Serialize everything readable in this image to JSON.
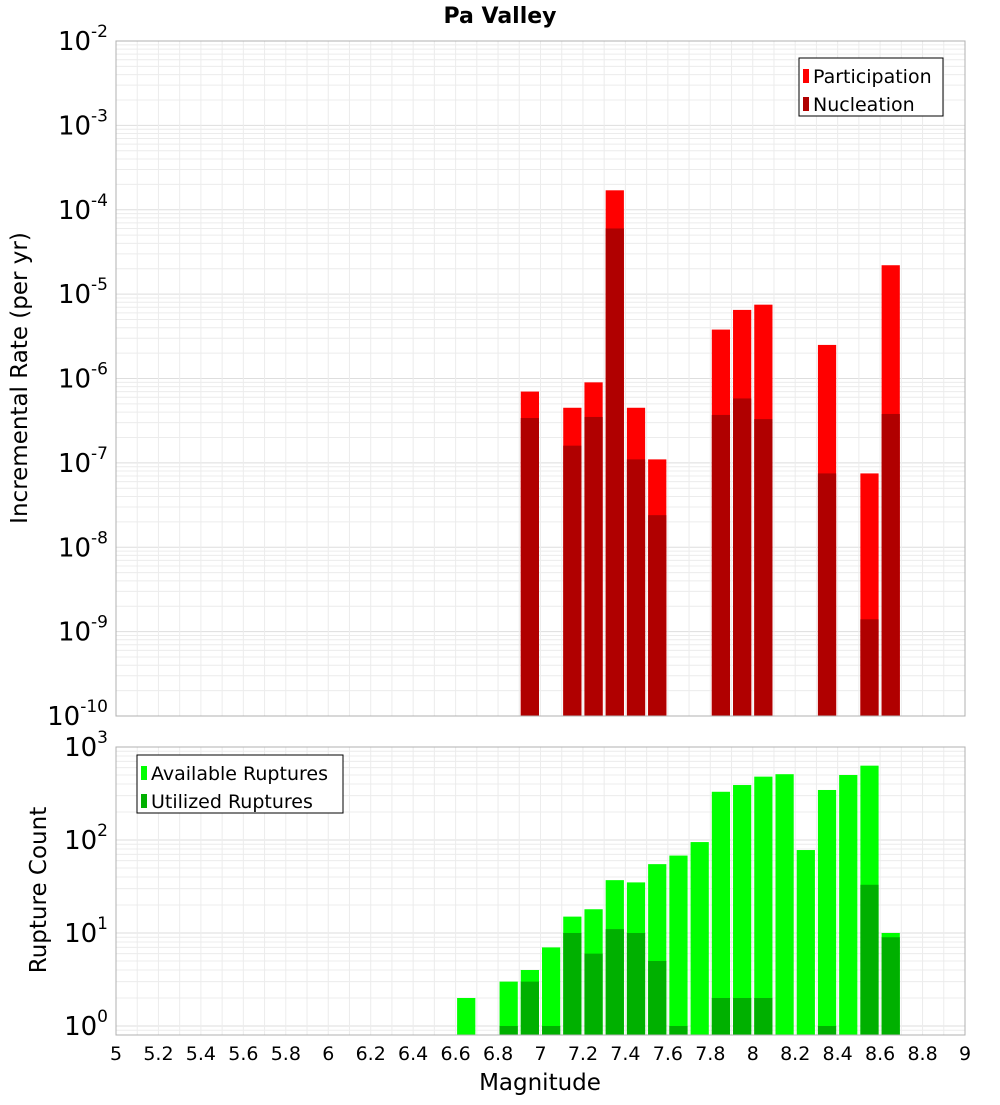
{
  "chart_data": [
    {
      "type": "bar",
      "title": "Pa Valley",
      "ylabel": "Incremental Rate (per yr)",
      "yscale": "log",
      "ylim": [
        1e-10,
        0.01
      ],
      "yticks": [
        {
          "base": "10",
          "exp": "-10"
        },
        {
          "base": "10",
          "exp": "-9"
        },
        {
          "base": "10",
          "exp": "-8"
        },
        {
          "base": "10",
          "exp": "-7"
        },
        {
          "base": "10",
          "exp": "-6"
        },
        {
          "base": "10",
          "exp": "-5"
        },
        {
          "base": "10",
          "exp": "-4"
        },
        {
          "base": "10",
          "exp": "-3"
        },
        {
          "base": "10",
          "exp": "-2"
        }
      ],
      "legend": {
        "position": "top-right"
      },
      "grid": true,
      "series": [
        {
          "name": "Participation",
          "color": "#ff0000",
          "points": [
            {
              "x": 6.95,
              "y": 7e-07
            },
            {
              "x": 7.15,
              "y": 4.5e-07
            },
            {
              "x": 7.25,
              "y": 9e-07
            },
            {
              "x": 7.35,
              "y": 0.00017
            },
            {
              "x": 7.45,
              "y": 4.5e-07
            },
            {
              "x": 7.55,
              "y": 1.1e-07
            },
            {
              "x": 7.85,
              "y": 3.8e-06
            },
            {
              "x": 7.95,
              "y": 6.5e-06
            },
            {
              "x": 8.05,
              "y": 7.5e-06
            },
            {
              "x": 8.35,
              "y": 2.5e-06
            },
            {
              "x": 8.55,
              "y": 7.5e-08
            },
            {
              "x": 8.65,
              "y": 2.2e-05
            }
          ]
        },
        {
          "name": "Nucleation",
          "color": "#b00000",
          "points": [
            {
              "x": 6.95,
              "y": 3.4e-07
            },
            {
              "x": 7.15,
              "y": 1.6e-07
            },
            {
              "x": 7.25,
              "y": 3.5e-07
            },
            {
              "x": 7.35,
              "y": 6e-05
            },
            {
              "x": 7.45,
              "y": 1.1e-07
            },
            {
              "x": 7.55,
              "y": 2.4e-08
            },
            {
              "x": 7.85,
              "y": 3.7e-07
            },
            {
              "x": 7.95,
              "y": 5.8e-07
            },
            {
              "x": 8.05,
              "y": 3.3e-07
            },
            {
              "x": 8.35,
              "y": 7.5e-08
            },
            {
              "x": 8.55,
              "y": 1.4e-09
            },
            {
              "x": 8.65,
              "y": 3.8e-07
            }
          ]
        }
      ]
    },
    {
      "type": "bar",
      "ylabel": "Rupture Count",
      "xlabel": "Magnitude",
      "yscale": "log",
      "ylim": [
        0.8,
        1000
      ],
      "xlim": [
        5,
        9
      ],
      "xticks": [
        "5",
        "5.2",
        "5.4",
        "5.6",
        "5.8",
        "6",
        "6.2",
        "6.4",
        "6.6",
        "6.8",
        "7",
        "7.2",
        "7.4",
        "7.6",
        "7.8",
        "8",
        "8.2",
        "8.4",
        "8.6",
        "8.8",
        "9"
      ],
      "yticks": [
        {
          "base": "10",
          "exp": "0"
        },
        {
          "base": "10",
          "exp": "1"
        },
        {
          "base": "10",
          "exp": "2"
        },
        {
          "base": "10",
          "exp": "3"
        }
      ],
      "legend": {
        "position": "top-left"
      },
      "grid": true,
      "series": [
        {
          "name": "Available Ruptures",
          "color": "#00ff00",
          "points": [
            {
              "x": 6.65,
              "y": 2
            },
            {
              "x": 6.85,
              "y": 3
            },
            {
              "x": 6.95,
              "y": 4
            },
            {
              "x": 7.05,
              "y": 7
            },
            {
              "x": 7.15,
              "y": 15
            },
            {
              "x": 7.25,
              "y": 18
            },
            {
              "x": 7.35,
              "y": 37
            },
            {
              "x": 7.45,
              "y": 35
            },
            {
              "x": 7.55,
              "y": 55
            },
            {
              "x": 7.65,
              "y": 68
            },
            {
              "x": 7.75,
              "y": 95
            },
            {
              "x": 7.85,
              "y": 330
            },
            {
              "x": 7.95,
              "y": 390
            },
            {
              "x": 8.05,
              "y": 480
            },
            {
              "x": 8.15,
              "y": 510
            },
            {
              "x": 8.25,
              "y": 78
            },
            {
              "x": 8.35,
              "y": 345
            },
            {
              "x": 8.45,
              "y": 500
            },
            {
              "x": 8.55,
              "y": 630
            },
            {
              "x": 8.65,
              "y": 10
            }
          ]
        },
        {
          "name": "Utilized Ruptures",
          "color": "#00b000",
          "points": [
            {
              "x": 6.85,
              "y": 1
            },
            {
              "x": 6.95,
              "y": 3
            },
            {
              "x": 7.05,
              "y": 1
            },
            {
              "x": 7.15,
              "y": 10
            },
            {
              "x": 7.25,
              "y": 6
            },
            {
              "x": 7.35,
              "y": 11
            },
            {
              "x": 7.45,
              "y": 10
            },
            {
              "x": 7.55,
              "y": 5
            },
            {
              "x": 7.65,
              "y": 1
            },
            {
              "x": 7.85,
              "y": 2
            },
            {
              "x": 7.95,
              "y": 2
            },
            {
              "x": 8.05,
              "y": 2
            },
            {
              "x": 8.35,
              "y": 1
            },
            {
              "x": 8.55,
              "y": 33
            },
            {
              "x": 8.65,
              "y": 9
            }
          ]
        }
      ]
    }
  ]
}
